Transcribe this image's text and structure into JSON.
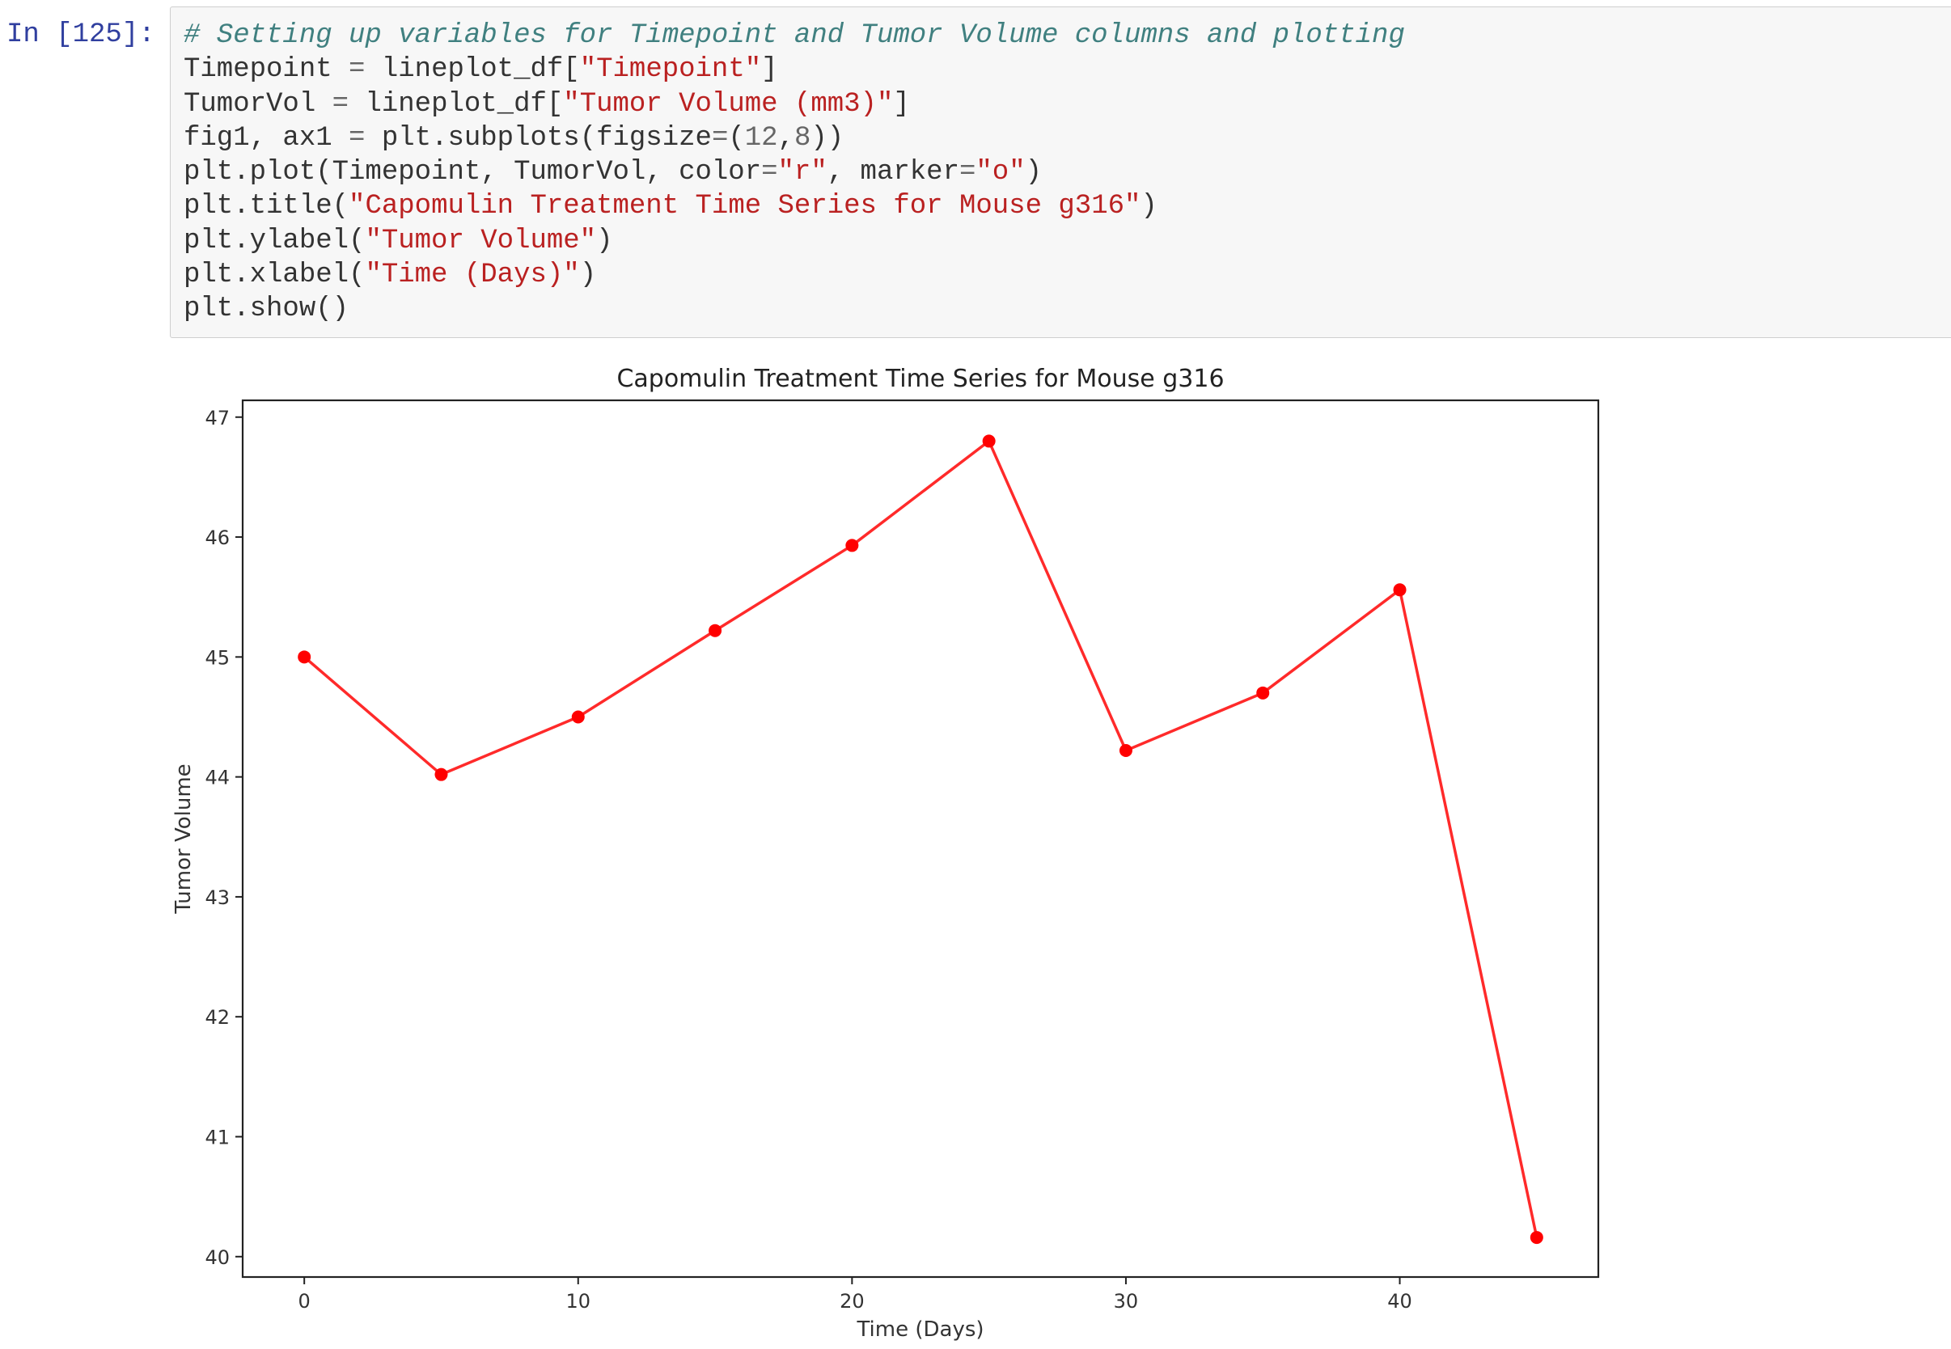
{
  "cell": {
    "prompt": "In [125]:",
    "lines": [
      [
        {
          "t": "# Setting up variables for Timepoint and Tumor Volume columns and plotting",
          "c": "cm-comment"
        }
      ],
      [
        {
          "t": "Timepoint "
        },
        {
          "t": "=",
          "c": "cm-op"
        },
        {
          "t": " lineplot_df["
        },
        {
          "t": "\"Timepoint\"",
          "c": "cm-string"
        },
        {
          "t": "]"
        }
      ],
      [
        {
          "t": "TumorVol "
        },
        {
          "t": "=",
          "c": "cm-op"
        },
        {
          "t": " lineplot_df["
        },
        {
          "t": "\"Tumor Volume (mm3)\"",
          "c": "cm-string"
        },
        {
          "t": "]"
        }
      ],
      [
        {
          "t": "fig1, ax1 "
        },
        {
          "t": "=",
          "c": "cm-op"
        },
        {
          "t": " plt.subplots(figsize"
        },
        {
          "t": "=",
          "c": "cm-op"
        },
        {
          "t": "("
        },
        {
          "t": "12",
          "c": "cm-num"
        },
        {
          "t": ","
        },
        {
          "t": "8",
          "c": "cm-num"
        },
        {
          "t": "))"
        }
      ],
      [
        {
          "t": "plt.plot(Timepoint, TumorVol, color"
        },
        {
          "t": "=",
          "c": "cm-op"
        },
        {
          "t": "\"r\"",
          "c": "cm-string"
        },
        {
          "t": ", marker"
        },
        {
          "t": "=",
          "c": "cm-op"
        },
        {
          "t": "\"o\"",
          "c": "cm-string"
        },
        {
          "t": ")"
        }
      ],
      [
        {
          "t": "plt.title("
        },
        {
          "t": "\"Capomulin Treatment Time Series for Mouse g316\"",
          "c": "cm-string"
        },
        {
          "t": ")"
        }
      ],
      [
        {
          "t": "plt.ylabel("
        },
        {
          "t": "\"Tumor Volume\"",
          "c": "cm-string"
        },
        {
          "t": ")"
        }
      ],
      [
        {
          "t": "plt.xlabel("
        },
        {
          "t": "\"Time (Days)\"",
          "c": "cm-string"
        },
        {
          "t": ")"
        }
      ],
      [
        {
          "t": "plt.show()"
        }
      ]
    ]
  },
  "colors": {
    "line": "#ff2a2a",
    "marker": "#ff0000",
    "prompt": "#303f9f",
    "comment": "#408080",
    "string": "#ba2121"
  },
  "chart_data": {
    "type": "line",
    "title": "Capomulin Treatment Time Series for Mouse g316",
    "xlabel": "Time (Days)",
    "ylabel": "Tumor Volume",
    "x": [
      0,
      5,
      10,
      15,
      20,
      25,
      30,
      35,
      40,
      45
    ],
    "y": [
      45.0,
      44.02,
      44.5,
      45.22,
      45.93,
      46.8,
      44.22,
      44.7,
      45.56,
      40.16
    ],
    "xlim": [
      -2.25,
      47.25
    ],
    "ylim": [
      39.83,
      47.14
    ],
    "xticks": [
      0,
      10,
      20,
      30,
      40
    ],
    "yticks": [
      40,
      41,
      42,
      43,
      44,
      45,
      46,
      47
    ],
    "marker": "o",
    "grid": false
  }
}
